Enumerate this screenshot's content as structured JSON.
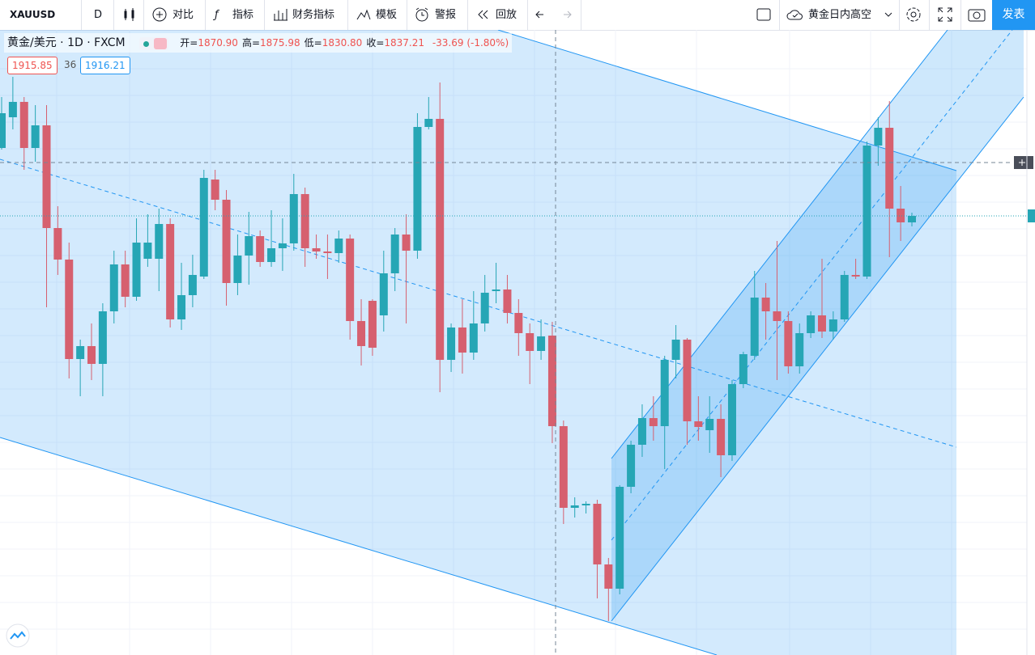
{
  "toolbar": {
    "symbol": "XAUUSD",
    "interval": "D",
    "buttons": [
      "对比",
      "指标",
      "财务指标",
      "模板",
      "警报",
      "回放"
    ],
    "layout_name": "黄金日内高空",
    "publish": "发表"
  },
  "legend": {
    "title": "黄金/美元 · 1D · FXCM",
    "ohlc": [
      {
        "label": "开=",
        "value": "1870.90"
      },
      {
        "label": "高=",
        "value": "1875.98"
      },
      {
        "label": "低=",
        "value": "1830.80"
      },
      {
        "label": "收=",
        "value": "1837.21"
      }
    ],
    "change": "-33.69 (-1.80%)",
    "bid": "1915.85",
    "spread": "36",
    "ask": "1916.21"
  },
  "chart_data": {
    "type": "candlestick",
    "up_color": "#26a6b5",
    "down_color": "#d6606f",
    "ylim": [
      1752.5,
      1984.4
    ],
    "open": [
      1940.6,
      1952.0,
      1957.7,
      1940.6,
      1949.0,
      1910.9,
      1899.2,
      1862.3,
      1867.1,
      1860.5,
      1880.0,
      1897.4,
      1885.4,
      1899.5,
      1899.5,
      1912.4,
      1877.0,
      1886.0,
      1892.9,
      1928.9,
      1921.4,
      1890.5,
      1900.7,
      1907.9,
      1898.3,
      1903.4,
      1905.2,
      1923.5,
      1903.4,
      1902.2,
      1901.6,
      1907.0,
      1876.4,
      1883.9,
      1878.5,
      1894.1,
      1908.5,
      1902.5,
      1948.4,
      1951.4,
      1862.0,
      1874.0,
      1864.7,
      1875.5,
      1887.5,
      1888.1,
      1879.4,
      1871.9,
      1865.3,
      1871.0,
      1837.4,
      1807.1,
      1808.0,
      1808.6,
      1786.1,
      1777.1,
      1814.9,
      1830.5,
      1840.4,
      1837.4,
      1862.0,
      1869.5,
      1839.2,
      1835.9,
      1840.1,
      1826.6,
      1853.0,
      1863.5,
      1885.1,
      1880.0,
      1876.4,
      1859.6,
      1871.9,
      1878.5,
      1872.5,
      1877.0,
      1893.5,
      1892.9,
      1941.5,
      1948.1,
      1918.1,
      1913.0
    ],
    "high": [
      1959.5,
      1967.0,
      1959.5,
      1956.5,
      1956.5,
      1919.0,
      1905.5,
      1869.5,
      1875.5,
      1883.0,
      1902.5,
      1902.5,
      1914.5,
      1916.0,
      1918.1,
      1914.5,
      1898.0,
      1901.0,
      1932.5,
      1932.5,
      1925.0,
      1908.5,
      1916.9,
      1910.0,
      1917.5,
      1914.5,
      1931.0,
      1925.9,
      1908.5,
      1908.5,
      1910.0,
      1908.5,
      1884.5,
      1884.5,
      1902.5,
      1910.9,
      1916.0,
      1953.5,
      1959.5,
      1964.9,
      1875.5,
      1884.5,
      1887.5,
      1893.5,
      1898.0,
      1893.5,
      1884.5,
      1875.5,
      1877.0,
      1876.1,
      1839.5,
      1811.0,
      1809.5,
      1810.1,
      1788.5,
      1815.5,
      1832.0,
      1845.5,
      1848.5,
      1863.5,
      1874.9,
      1870.1,
      1848.5,
      1848.5,
      1845.5,
      1854.5,
      1865.0,
      1895.0,
      1890.5,
      1906.1,
      1880.0,
      1875.5,
      1880.0,
      1899.5,
      1880.0,
      1895.0,
      1899.5,
      1943.0,
      1952.0,
      1958.0,
      1926.5,
      1916.6
    ],
    "low": [
      1940.0,
      1947.5,
      1932.5,
      1935.5,
      1881.5,
      1893.5,
      1855.1,
      1848.5,
      1854.5,
      1848.5,
      1875.5,
      1881.5,
      1883.9,
      1896.5,
      1887.5,
      1874.0,
      1873.1,
      1881.5,
      1892.0,
      1917.5,
      1882.1,
      1886.0,
      1889.9,
      1896.5,
      1896.5,
      1895.0,
      1902.5,
      1896.5,
      1899.5,
      1892.0,
      1898.0,
      1869.5,
      1859.9,
      1863.5,
      1872.5,
      1887.5,
      1875.5,
      1899.5,
      1947.5,
      1850.0,
      1857.5,
      1856.9,
      1862.0,
      1872.5,
      1883.0,
      1875.5,
      1863.5,
      1853.0,
      1862.0,
      1831.1,
      1801.1,
      1803.5,
      1805.0,
      1773.5,
      1765.1,
      1775.0,
      1812.5,
      1826.0,
      1832.0,
      1821.5,
      1855.1,
      1830.5,
      1832.0,
      1827.5,
      1818.5,
      1824.5,
      1851.5,
      1862.0,
      1869.5,
      1854.5,
      1856.9,
      1856.9,
      1870.1,
      1870.1,
      1869.5,
      1876.1,
      1892.0,
      1892.0,
      1934.0,
      1900.1,
      1906.1,
      1911.5
    ],
    "close": [
      1953.5,
      1957.7,
      1940.6,
      1949.0,
      1910.9,
      1899.2,
      1862.3,
      1867.1,
      1860.5,
      1880.0,
      1897.4,
      1885.4,
      1905.5,
      1905.5,
      1912.4,
      1877.0,
      1886.0,
      1893.5,
      1929.5,
      1921.4,
      1890.5,
      1900.7,
      1907.9,
      1898.3,
      1903.4,
      1905.2,
      1923.5,
      1903.4,
      1902.2,
      1901.6,
      1907.0,
      1876.4,
      1867.1,
      1866.5,
      1894.1,
      1908.5,
      1902.5,
      1948.4,
      1951.4,
      1862.0,
      1874.0,
      1864.7,
      1875.5,
      1886.9,
      1888.1,
      1879.4,
      1871.9,
      1865.3,
      1870.7,
      1837.4,
      1807.1,
      1808.0,
      1808.6,
      1786.1,
      1777.1,
      1814.9,
      1830.5,
      1840.4,
      1837.4,
      1862.0,
      1869.5,
      1839.2,
      1837.1,
      1840.1,
      1826.6,
      1853.0,
      1864.1,
      1885.1,
      1880.0,
      1876.4,
      1859.6,
      1871.9,
      1878.5,
      1872.5,
      1877.0,
      1893.5,
      1892.9,
      1941.5,
      1948.1,
      1918.1,
      1913.0,
      1915.4
    ]
  }
}
